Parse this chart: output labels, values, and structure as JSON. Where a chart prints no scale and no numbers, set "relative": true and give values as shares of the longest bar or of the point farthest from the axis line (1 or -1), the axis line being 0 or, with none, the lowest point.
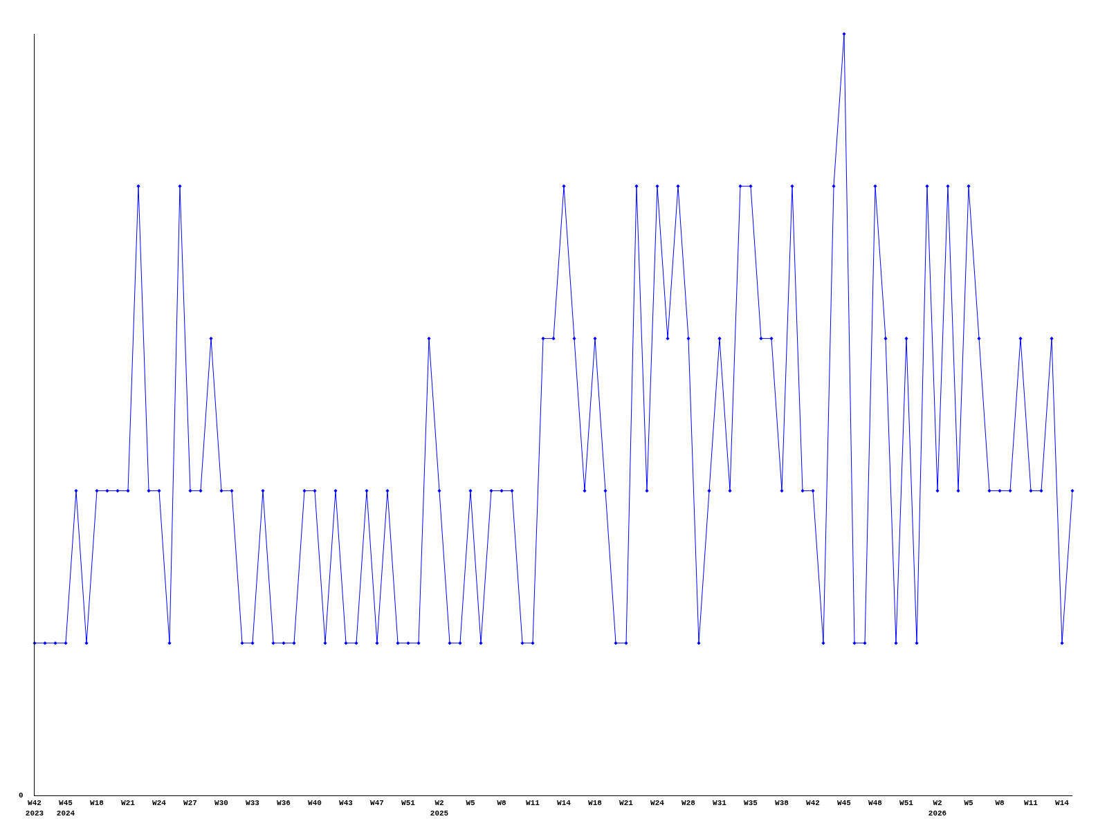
{
  "chart_data": {
    "type": "line",
    "relative": true,
    "color": "#0000ff",
    "marker": "diamond",
    "legend": false,
    "annotations": [
      "0"
    ],
    "categories": [
      "W42\n2023",
      null,
      null,
      "W45\n2024",
      null,
      null,
      "W18",
      null,
      null,
      "W21",
      null,
      null,
      "W24",
      null,
      null,
      "W27",
      null,
      null,
      "W30",
      null,
      null,
      "W33",
      null,
      null,
      "W36",
      null,
      null,
      "W40",
      null,
      null,
      "W43",
      null,
      null,
      "W47",
      null,
      null,
      "W51",
      null,
      null,
      "W2\n2025",
      null,
      null,
      "W5",
      null,
      null,
      "W8",
      null,
      null,
      "W11",
      null,
      null,
      "W14",
      null,
      null,
      "W18",
      null,
      null,
      "W21",
      null,
      null,
      "W24",
      null,
      null,
      "W28",
      null,
      null,
      "W31",
      null,
      null,
      "W35",
      null,
      null,
      "W38",
      null,
      null,
      "W42",
      null,
      null,
      "W45",
      null,
      null,
      "W48",
      null,
      null,
      "W51",
      null,
      null,
      "W2\n2026",
      null,
      null,
      "W5",
      null,
      null,
      "W8",
      null,
      null,
      "W11",
      null,
      null,
      "W14",
      null
    ],
    "values": [
      0.2,
      0.2,
      0.2,
      0.2,
      0.4,
      0.2,
      0.4,
      0.4,
      0.4,
      0.4,
      0.8,
      0.4,
      0.4,
      0.2,
      0.8,
      0.4,
      0.4,
      0.6,
      0.4,
      0.4,
      0.2,
      0.2,
      0.4,
      0.2,
      0.2,
      0.2,
      0.4,
      0.4,
      0.2,
      0.4,
      0.2,
      0.2,
      0.4,
      0.2,
      0.4,
      0.2,
      0.2,
      0.2,
      0.6,
      0.4,
      0.2,
      0.2,
      0.4,
      0.2,
      0.4,
      0.4,
      0.4,
      0.2,
      0.2,
      0.6,
      0.6,
      0.8,
      0.6,
      0.4,
      0.6,
      0.4,
      0.2,
      0.2,
      0.8,
      0.4,
      0.8,
      0.6,
      0.8,
      0.6,
      0.2,
      0.4,
      0.6,
      0.4,
      0.8,
      0.8,
      0.6,
      0.6,
      0.4,
      0.8,
      0.4,
      0.4,
      0.2,
      0.8,
      1,
      0.2,
      0.2,
      0.8,
      0.6,
      0.2,
      0.6,
      0.2,
      0.8,
      0.4,
      0.8,
      0.4,
      0.8,
      0.6,
      0.4,
      0.4,
      0.4,
      0.6,
      0.4,
      0.4,
      0.6,
      0.2,
      0.4
    ]
  }
}
